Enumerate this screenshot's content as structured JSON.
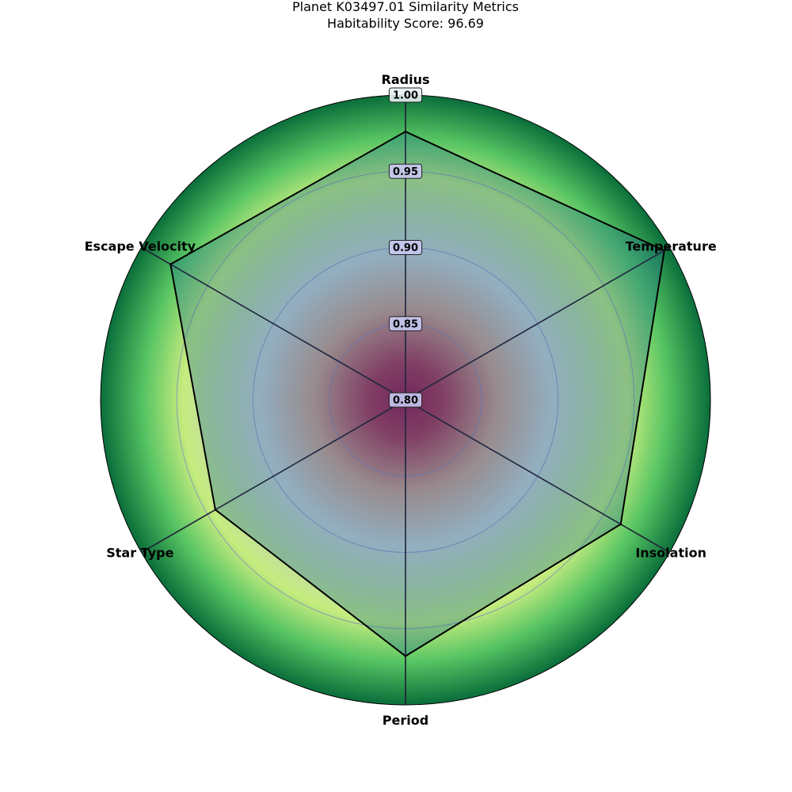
{
  "chart_data": {
    "type": "radar",
    "title": "Planet K03497.01 Similarity Metrics",
    "subtitle": "Habitability Score: 96.69",
    "axes": [
      "Radius",
      "Temperature",
      "Insolation",
      "Period",
      "Star Type",
      "Escape Velocity"
    ],
    "values": [
      0.976,
      0.996,
      0.963,
      0.968,
      0.944,
      0.978
    ],
    "rlim": [
      0.8,
      1.0
    ],
    "rticks": [
      0.8,
      0.85,
      0.9,
      0.95,
      1.0
    ],
    "rtick_labels": [
      "0.80",
      "0.85",
      "0.90",
      "0.95",
      "1.00"
    ],
    "grid": true,
    "colors": {
      "polygon_fill": "#1f6f8b",
      "polygon_edge": "#000000",
      "grid": "#7b7bc9",
      "tick_box": "#c8c8f0",
      "gradient_center": "#9e0142",
      "gradient_mid": "#d0d0dc",
      "gradient_light": "#c6ec7f",
      "gradient_outer": "#0a6e3a"
    }
  }
}
